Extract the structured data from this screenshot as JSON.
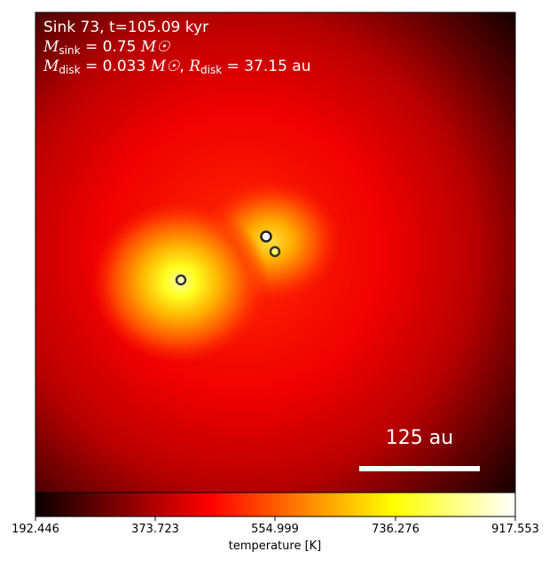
{
  "annotation": {
    "line1": "Sink 73, t=105.09 kyr",
    "sink_mass_value": "0.75",
    "disk_mass_value": "0.033",
    "disk_radius_value": "37.15",
    "mass_unit_symbol": "M☉",
    "radius_unit": "au"
  },
  "scalebar": {
    "label": "125 au"
  },
  "colorbar": {
    "label": "temperature [K]",
    "ticks": [
      "192.446",
      "373.723",
      "554.999",
      "736.276",
      "917.553"
    ],
    "colormap": "hot"
  },
  "sinks": [
    {
      "name": "sink-marker-a",
      "ring_color": "#222222",
      "fill_color": "#ffffff"
    },
    {
      "name": "sink-marker-b",
      "ring_color": "#333333",
      "fill_color": "#ffff66"
    },
    {
      "name": "sink-marker-c",
      "ring_color": "#333333",
      "fill_color": "#ffffaa"
    }
  ]
}
